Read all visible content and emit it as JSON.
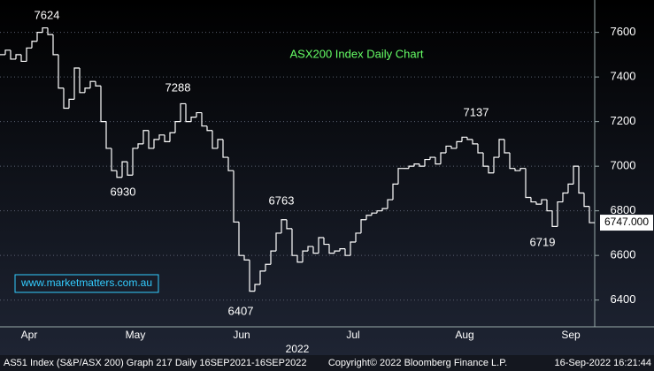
{
  "chart_data": {
    "type": "line",
    "title": "ASX200 Index Daily Chart",
    "watermark": "www.marketmatters.com.au",
    "x_axis_year": "2022",
    "categories": [
      null,
      null,
      null,
      null,
      null,
      "Apr",
      null,
      null,
      null,
      null,
      null,
      null,
      null,
      null,
      null,
      null,
      null,
      null,
      null,
      null,
      null,
      null,
      null,
      null,
      null,
      "May",
      null,
      null,
      null,
      null,
      null,
      null,
      null,
      null,
      null,
      null,
      null,
      null,
      null,
      null,
      null,
      null,
      null,
      null,
      null,
      "Jun",
      null,
      null,
      null,
      null,
      null,
      null,
      null,
      null,
      null,
      null,
      null,
      null,
      null,
      null,
      null,
      null,
      null,
      null,
      null,
      null,
      "Jul",
      null,
      null,
      null,
      null,
      null,
      null,
      null,
      null,
      null,
      null,
      null,
      null,
      null,
      null,
      null,
      null,
      null,
      null,
      null,
      null,
      "Aug",
      null,
      null,
      null,
      null,
      null,
      null,
      null,
      null,
      null,
      null,
      null,
      null,
      null,
      null,
      null,
      null,
      null,
      null,
      null,
      "Sep",
      null,
      null,
      null,
      null
    ],
    "series": [
      {
        "name": "AS51 Index",
        "color": "#ffffff",
        "values": [
          7500,
          7520,
          7480,
          7500,
          7470,
          7530,
          7560,
          7600,
          7620,
          7590,
          7500,
          7350,
          7260,
          7300,
          7440,
          7330,
          7350,
          7380,
          7360,
          7200,
          7080,
          6980,
          6950,
          7020,
          6960,
          7080,
          7100,
          7160,
          7080,
          7120,
          7140,
          7110,
          7150,
          7200,
          7280,
          7200,
          7220,
          7240,
          7180,
          7160,
          7080,
          7120,
          7040,
          6980,
          6750,
          6600,
          6580,
          6440,
          6470,
          6530,
          6560,
          6620,
          6700,
          6760,
          6720,
          6600,
          6570,
          6620,
          6640,
          6610,
          6680,
          6650,
          6610,
          6620,
          6630,
          6600,
          6660,
          6700,
          6760,
          6780,
          6790,
          6800,
          6810,
          6850,
          6920,
          6990,
          6990,
          7000,
          7010,
          7000,
          7030,
          7040,
          7010,
          7060,
          7090,
          7080,
          7110,
          7130,
          7120,
          7100,
          7060,
          7000,
          6970,
          7040,
          7120,
          7060,
          6990,
          6980,
          6990,
          6860,
          6840,
          6830,
          6850,
          6800,
          6730,
          6840,
          6880,
          6920,
          7000,
          6880,
          6820,
          6747
        ]
      }
    ],
    "last_label": "6747.000",
    "annotations": [
      "7624",
      "7288",
      "6930",
      "6407",
      "6763",
      "7137",
      "6719"
    ],
    "ylim": [
      6280,
      7745
    ],
    "yticks": [
      6400,
      6600,
      6800,
      7000,
      7200,
      7400,
      7600
    ],
    "grid": true,
    "footer": {
      "left": "AS51 Index (S&P/ASX 200) Graph 217  Daily 16SEP2021-16SEP2022",
      "center": "Copyright© 2022 Bloomberg Finance L.P.",
      "right": "16-Sep-2022 16:21:44"
    }
  }
}
